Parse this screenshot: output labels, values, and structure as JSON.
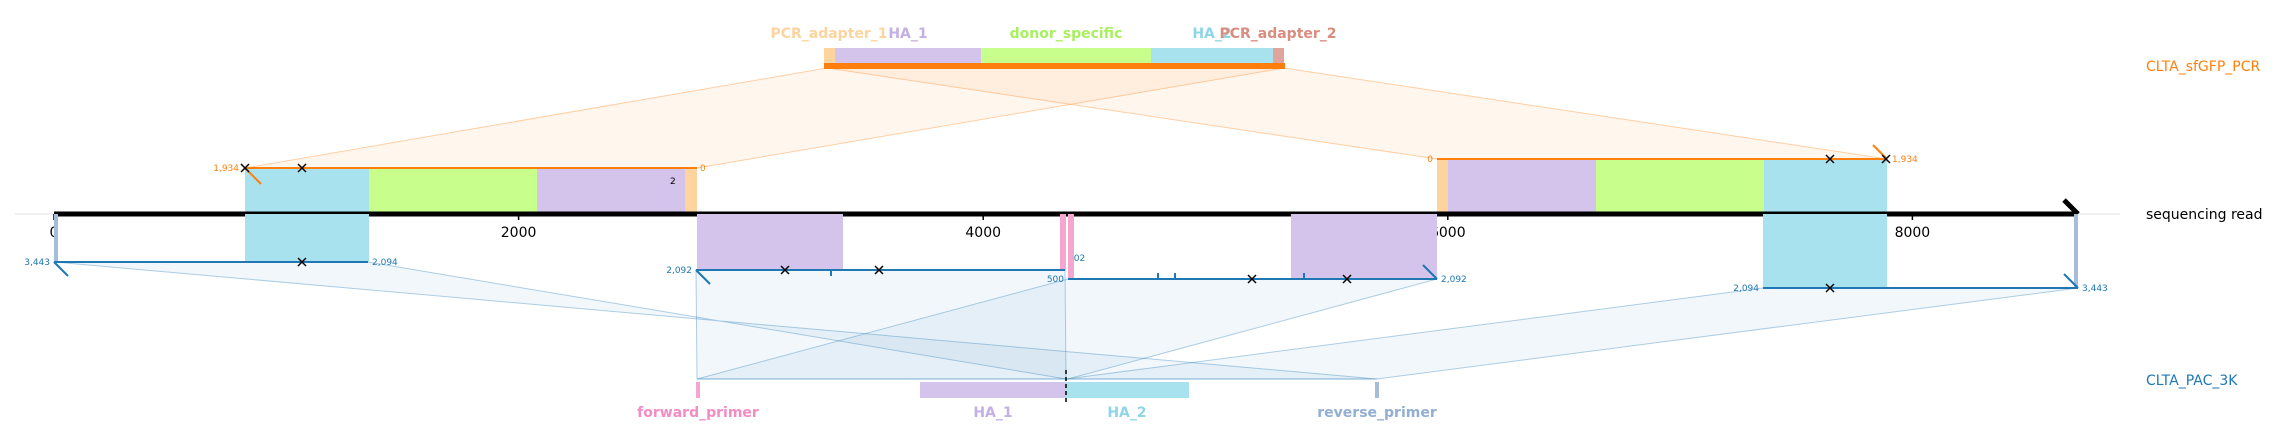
{
  "colors": {
    "pcr_adapter_1": "#fdd49e",
    "ha_1": "#d4c3ea",
    "donor_specific": "#c8ff8c",
    "ha_2": "#a8e2ee",
    "pcr_adapter_2": "#e0a49c",
    "forward_primer": "#f4a6d0",
    "reverse_primer": "#a6bcdb",
    "pcr_track": "#ff7f0e",
    "pac_track": "#1f77b4",
    "read": "#000000"
  },
  "tracks": {
    "pcr": {
      "label": "CLTA_sfGFP_PCR"
    },
    "read": {
      "label": "sequencing read"
    },
    "pac": {
      "label": "CLTA_PAC_3K"
    }
  },
  "pcr_features": [
    {
      "id": "pcr_adapter_1",
      "label": "PCR_adapter_1",
      "label_color": "#fdd49e"
    },
    {
      "id": "ha_1",
      "label": "HA_1",
      "label_color": "#c5b0e5"
    },
    {
      "id": "donor_specific",
      "label": "donor_specific",
      "label_color": "#a8f060"
    },
    {
      "id": "ha_2",
      "label": "HA_2",
      "label_color": "#8fd5e8"
    },
    {
      "id": "pcr_adapter_2",
      "label": "PCR_adapter_2",
      "label_color": "#d98c80"
    }
  ],
  "pac_features": [
    {
      "id": "forward_primer",
      "label": "forward_primer",
      "label_color": "#f48cc4"
    },
    {
      "id": "ha_1",
      "label": "HA_1",
      "label_color": "#c5b0e5"
    },
    {
      "id": "ha_2",
      "label": "HA_2",
      "label_color": "#8fd5e8"
    },
    {
      "id": "reverse_primer",
      "label": "reverse_primer",
      "label_color": "#93aed3"
    }
  ],
  "axis": {
    "ticks": [
      0,
      2000,
      4000,
      6000,
      8000
    ],
    "tick_labels": [
      "0",
      "2000",
      "4000",
      "6000",
      "8000"
    ],
    "read_length": 8700
  },
  "alignments": {
    "pcr_left": {
      "start_label": "1,934",
      "end_label": "0",
      "extra_label": "2"
    },
    "pcr_right": {
      "start_label": "0",
      "end_label": "1,934"
    },
    "pac_1": {
      "start_label": "3,443",
      "end_label": "2,094"
    },
    "pac_2": {
      "start_label": "2,092",
      "end_label": "502"
    },
    "pac_3": {
      "start_label": "500",
      "end_label": "2,092"
    },
    "pac_4": {
      "start_label": "2,094",
      "end_label": "3,443"
    }
  }
}
